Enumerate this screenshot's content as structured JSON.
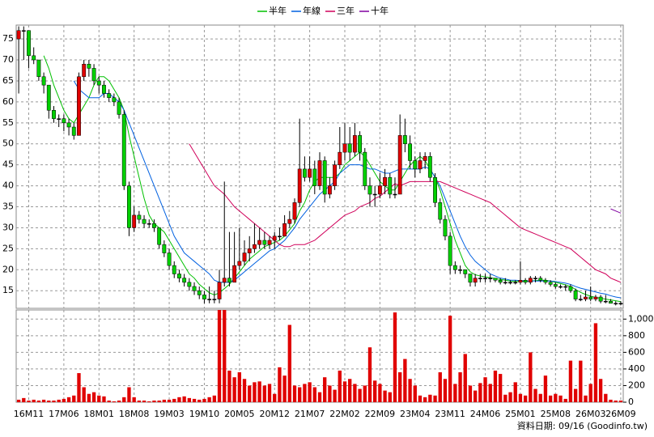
{
  "chart_data": {
    "type": "candlestick",
    "legend": "top",
    "grid": true,
    "up_color": "#e00000",
    "down_color": "#00d000",
    "flat_color": "#000000",
    "note": "資料日期: 09/16 (Goodinfo.tw)",
    "categories": [
      null,
      null,
      "16M11",
      null,
      null,
      null,
      null,
      null,
      null,
      "17M06",
      null,
      null,
      null,
      null,
      null,
      null,
      "18M01",
      null,
      null,
      null,
      null,
      null,
      null,
      "18M08",
      null,
      null,
      null,
      null,
      null,
      null,
      "19M03",
      null,
      null,
      null,
      null,
      null,
      null,
      "19M10",
      null,
      null,
      null,
      null,
      null,
      null,
      "20M05",
      null,
      null,
      null,
      null,
      null,
      null,
      "20M12",
      null,
      null,
      null,
      null,
      null,
      null,
      "21M07",
      null,
      null,
      null,
      null,
      null,
      null,
      "22M02",
      null,
      null,
      null,
      null,
      null,
      null,
      "22M09",
      null,
      null,
      null,
      null,
      null,
      null,
      "23M04",
      null,
      null,
      null,
      null,
      null,
      null,
      "23M11",
      null,
      null,
      null,
      null,
      null,
      null,
      "24M06",
      null,
      null,
      null,
      null,
      null,
      null,
      "25M01",
      null,
      null,
      null,
      null,
      null,
      null,
      "25M08",
      null,
      null,
      null,
      null,
      null,
      null,
      "26M03",
      null,
      null,
      null,
      null,
      null,
      "26M09"
    ],
    "ylim": [
      10.8,
      78.3
    ],
    "yticks": [
      15,
      20,
      25,
      30,
      35,
      40,
      45,
      50,
      55,
      60,
      65,
      70,
      75
    ],
    "ohlc": [
      [
        75,
        78,
        62,
        77
      ],
      [
        77,
        78,
        70,
        77
      ],
      [
        77,
        77,
        68,
        71
      ],
      [
        71,
        73,
        69,
        70
      ],
      [
        70,
        70,
        65,
        66
      ],
      [
        66,
        67,
        62,
        64
      ],
      [
        64,
        64,
        56,
        58
      ],
      [
        58,
        59,
        55,
        56
      ],
      [
        56,
        57,
        54,
        56
      ],
      [
        56,
        57,
        53,
        55
      ],
      [
        55,
        56,
        52,
        54
      ],
      [
        54,
        55,
        51,
        52
      ],
      [
        52,
        67,
        52,
        66
      ],
      [
        66,
        70,
        65,
        69
      ],
      [
        69,
        70,
        66,
        68
      ],
      [
        68,
        69,
        64,
        65
      ],
      [
        65,
        66,
        62,
        64
      ],
      [
        64,
        65,
        61,
        62
      ],
      [
        62,
        63,
        60,
        61
      ],
      [
        61,
        62,
        59,
        60
      ],
      [
        60,
        61,
        56,
        57
      ],
      [
        57,
        58,
        39,
        40
      ],
      [
        40,
        41,
        28,
        30
      ],
      [
        30,
        35,
        29,
        33
      ],
      [
        33,
        34,
        31,
        32
      ],
      [
        32,
        33,
        30,
        31
      ],
      [
        31,
        32,
        30,
        31
      ],
      [
        31,
        32,
        29,
        30
      ],
      [
        30,
        30,
        25,
        26
      ],
      [
        26,
        27,
        23,
        24
      ],
      [
        24,
        25,
        20,
        21
      ],
      [
        21,
        22,
        18,
        19
      ],
      [
        19,
        20,
        17,
        18
      ],
      [
        18,
        19,
        16,
        17
      ],
      [
        17,
        18,
        15,
        16
      ],
      [
        16,
        17,
        14,
        15
      ],
      [
        15,
        16,
        13,
        14
      ],
      [
        14,
        15,
        12,
        13
      ],
      [
        13,
        16,
        12,
        13
      ],
      [
        13,
        15,
        12,
        13
      ],
      [
        13,
        20,
        12,
        17
      ],
      [
        17,
        41,
        16,
        18
      ],
      [
        18,
        29,
        16,
        17
      ],
      [
        17,
        29,
        17,
        21
      ],
      [
        21,
        30,
        20,
        22
      ],
      [
        22,
        27,
        21,
        24
      ],
      [
        24,
        28,
        22,
        25
      ],
      [
        25,
        31,
        24,
        26
      ],
      [
        26,
        30,
        25,
        27
      ],
      [
        27,
        29,
        25,
        26
      ],
      [
        26,
        28,
        25,
        27
      ],
      [
        27,
        29,
        25,
        28
      ],
      [
        28,
        30,
        27,
        28
      ],
      [
        28,
        33,
        28,
        31
      ],
      [
        31,
        34,
        30,
        32
      ],
      [
        32,
        37,
        31,
        36
      ],
      [
        36,
        56,
        35,
        44
      ],
      [
        44,
        47,
        41,
        42
      ],
      [
        42,
        47,
        41,
        44
      ],
      [
        44,
        46,
        38,
        40
      ],
      [
        40,
        48,
        39,
        46
      ],
      [
        46,
        47,
        36,
        38
      ],
      [
        38,
        42,
        37,
        40
      ],
      [
        40,
        46,
        39,
        45
      ],
      [
        45,
        54,
        44,
        48
      ],
      [
        48,
        55,
        46,
        50
      ],
      [
        50,
        54,
        46,
        48
      ],
      [
        48,
        55,
        47,
        52
      ],
      [
        52,
        53,
        46,
        48
      ],
      [
        48,
        49,
        39,
        40
      ],
      [
        40,
        42,
        35,
        38
      ],
      [
        38,
        40,
        35,
        38
      ],
      [
        38,
        43,
        37,
        40
      ],
      [
        40,
        44,
        38,
        42
      ],
      [
        42,
        43,
        37,
        38
      ],
      [
        38,
        42,
        37,
        38
      ],
      [
        38,
        57,
        38,
        52
      ],
      [
        52,
        56,
        48,
        50
      ],
      [
        50,
        52,
        44,
        46
      ],
      [
        46,
        47,
        42,
        44
      ],
      [
        44,
        48,
        43,
        46
      ],
      [
        46,
        48,
        44,
        47
      ],
      [
        47,
        48,
        41,
        42
      ],
      [
        42,
        43,
        35,
        36
      ],
      [
        36,
        37,
        31,
        32
      ],
      [
        32,
        33,
        27,
        28
      ],
      [
        28,
        29,
        19,
        21
      ],
      [
        21,
        22,
        19,
        20
      ],
      [
        20,
        21,
        19,
        20
      ],
      [
        20,
        20,
        18,
        19
      ],
      [
        19,
        19,
        16,
        17
      ],
      [
        17,
        19,
        16,
        18
      ],
      [
        18,
        19,
        17,
        18
      ],
      [
        18,
        19,
        17,
        18
      ],
      [
        18,
        19,
        17,
        18
      ],
      [
        18,
        18,
        17,
        17.5
      ],
      [
        17.5,
        18,
        16.5,
        17
      ],
      [
        17,
        18,
        16.5,
        17
      ],
      [
        17,
        17.5,
        16.5,
        17
      ],
      [
        17,
        17.5,
        16.5,
        17
      ],
      [
        17,
        22,
        16.5,
        17.5
      ],
      [
        17.5,
        18,
        16.5,
        17
      ],
      [
        17,
        18.5,
        16.5,
        18
      ],
      [
        18,
        18.5,
        17,
        18
      ],
      [
        18,
        18.5,
        17,
        17.5
      ],
      [
        17.5,
        18,
        16.5,
        17
      ],
      [
        17,
        17.5,
        16,
        16.5
      ],
      [
        16.5,
        17,
        15.5,
        16
      ],
      [
        16,
        16.5,
        15.5,
        16
      ],
      [
        16,
        16.5,
        15,
        16
      ],
      [
        16,
        16.5,
        14.5,
        15
      ],
      [
        15,
        15.5,
        12.5,
        13
      ],
      [
        13,
        14,
        12.5,
        13
      ],
      [
        13,
        15,
        12.5,
        13.5
      ],
      [
        13.5,
        16,
        12.5,
        13
      ],
      [
        13,
        14,
        12.5,
        13.5
      ],
      [
        13.5,
        14,
        12,
        12.5
      ],
      [
        12.5,
        14,
        12,
        12.5
      ],
      [
        12.5,
        13,
        12,
        12
      ],
      [
        12,
        12.5,
        11.5,
        12
      ],
      [
        12,
        12.5,
        11.5,
        12
      ]
    ],
    "series": [
      {
        "name": "半年",
        "color": "#00c000",
        "values": [
          null,
          null,
          null,
          null,
          null,
          71,
          68,
          64,
          61,
          58,
          56,
          55,
          57,
          59,
          61,
          64,
          66,
          66,
          65,
          63,
          61,
          58,
          52,
          47,
          42,
          37,
          33,
          31,
          30,
          29,
          27,
          25,
          23,
          21,
          19,
          18,
          16.5,
          15.5,
          14.5,
          14,
          14.5,
          15.5,
          16.5,
          18,
          19.5,
          21,
          22.5,
          23.5,
          24.5,
          25.5,
          26,
          26.5,
          27,
          28,
          29.5,
          31,
          34,
          36,
          39,
          41,
          42,
          42,
          42,
          42,
          43,
          45,
          46,
          47,
          48,
          47,
          45,
          43,
          41,
          40,
          39,
          39,
          41,
          43,
          45,
          46,
          47,
          46,
          44,
          42,
          39,
          35,
          31,
          27,
          24,
          21,
          19.5,
          18.8,
          18.5,
          18.3,
          18.1,
          17.9,
          17.7,
          17.5,
          17.3,
          17.2,
          17.2,
          17.2,
          17.3,
          17.4,
          17.5,
          17.5,
          17.3,
          17,
          16.7,
          16.4,
          16,
          15.3,
          14.6,
          14.1,
          13.7,
          13.4,
          13.2,
          13,
          12.8,
          12.6,
          12.4
        ]
      },
      {
        "name": "年線",
        "color": "#0060e0",
        "values": [
          null,
          null,
          null,
          null,
          null,
          null,
          null,
          null,
          null,
          null,
          null,
          65,
          63,
          62,
          61,
          61,
          61,
          62,
          62,
          61,
          60,
          58,
          55,
          52,
          49,
          46,
          43,
          40,
          37,
          34,
          31,
          28,
          26,
          24,
          23,
          22,
          21,
          20,
          19,
          17.5,
          17,
          17,
          17,
          17.5,
          18.5,
          19.5,
          20.5,
          21.5,
          22.5,
          23.5,
          24.5,
          25,
          26,
          27,
          28.5,
          30,
          32,
          33.5,
          35,
          36.5,
          38,
          39,
          40,
          41,
          43,
          44,
          45,
          45,
          45,
          44.5,
          44,
          44,
          43.5,
          43,
          43,
          43.5,
          44,
          44,
          44,
          44,
          44,
          44.5,
          44,
          42,
          40,
          37,
          34,
          31,
          28,
          25.5,
          23.5,
          22,
          21,
          20,
          19,
          18.5,
          18,
          17.8,
          17.5,
          17.5,
          17.4,
          17.3,
          17.3,
          17.3,
          17.3,
          17.3,
          17.3,
          17.2,
          17,
          16.8,
          16.5,
          16,
          15.6,
          15.3,
          15,
          14.7,
          14.4,
          14.2,
          13.8,
          13.5,
          13.3
        ]
      },
      {
        "name": "三年",
        "color": "#d0005a",
        "values": [
          null,
          null,
          null,
          null,
          null,
          null,
          null,
          null,
          null,
          null,
          null,
          null,
          null,
          null,
          null,
          null,
          null,
          null,
          null,
          null,
          null,
          null,
          null,
          null,
          null,
          null,
          null,
          null,
          null,
          null,
          null,
          null,
          null,
          null,
          50,
          48,
          46,
          44,
          42,
          40,
          39,
          38,
          36.5,
          35,
          34,
          33,
          32,
          31,
          30,
          29,
          28,
          27,
          26,
          25.5,
          25.5,
          26,
          26,
          26,
          26.5,
          27,
          28,
          29,
          30,
          31,
          32,
          33,
          33.5,
          34,
          35,
          35.5,
          36,
          37,
          37.5,
          38.5,
          39.5,
          40.5,
          40,
          40.5,
          41,
          41,
          41,
          41,
          41,
          41,
          41,
          40.5,
          40,
          39.5,
          39,
          38.5,
          38,
          37.5,
          37,
          36.5,
          36,
          35,
          34,
          33,
          32,
          31,
          30,
          29.5,
          29,
          28.5,
          28,
          27.5,
          27,
          26.5,
          26,
          25.5,
          25,
          24,
          23,
          22,
          21,
          20,
          19.5,
          19,
          18,
          17.5,
          17
        ]
      },
      {
        "name": "十年",
        "color": "#8000a0",
        "values": [
          null,
          null,
          null,
          null,
          null,
          null,
          null,
          null,
          null,
          null,
          null,
          null,
          null,
          null,
          null,
          null,
          null,
          null,
          null,
          null,
          null,
          null,
          null,
          null,
          null,
          null,
          null,
          null,
          null,
          null,
          null,
          null,
          null,
          null,
          null,
          null,
          null,
          null,
          null,
          null,
          null,
          null,
          null,
          null,
          null,
          null,
          null,
          null,
          null,
          null,
          null,
          null,
          null,
          null,
          null,
          null,
          null,
          null,
          null,
          null,
          null,
          null,
          null,
          null,
          null,
          null,
          null,
          null,
          null,
          null,
          null,
          null,
          null,
          null,
          null,
          null,
          null,
          null,
          null,
          null,
          null,
          null,
          null,
          null,
          null,
          null,
          null,
          null,
          null,
          null,
          null,
          null,
          null,
          null,
          null,
          null,
          null,
          null,
          null,
          null,
          null,
          null,
          null,
          null,
          null,
          null,
          null,
          null,
          null,
          null,
          null,
          null,
          null,
          null,
          null,
          null,
          null,
          null,
          34.5,
          34,
          33.5
        ]
      }
    ],
    "volume": {
      "color": "#e00000",
      "ylim": [
        0,
        1110
      ],
      "yticks": [
        0,
        200,
        400,
        600,
        800,
        {
          "value": 1000,
          "label": "1,000"
        }
      ],
      "values": [
        30,
        50,
        20,
        30,
        20,
        30,
        20,
        20,
        30,
        40,
        60,
        80,
        350,
        180,
        100,
        120,
        80,
        70,
        20,
        10,
        20,
        60,
        180,
        60,
        20,
        20,
        10,
        20,
        20,
        30,
        30,
        40,
        60,
        70,
        50,
        40,
        30,
        40,
        60,
        80,
        1110,
        1110,
        380,
        300,
        360,
        280,
        200,
        240,
        250,
        200,
        220,
        100,
        420,
        320,
        930,
        200,
        180,
        220,
        240,
        180,
        120,
        300,
        200,
        150,
        380,
        250,
        280,
        220,
        160,
        200,
        660,
        260,
        220,
        140,
        120,
        1080,
        360,
        520,
        280,
        200,
        80,
        60,
        90,
        80,
        360,
        280,
        1040,
        220,
        360,
        580,
        200,
        140,
        230,
        300,
        220,
        380,
        340,
        90,
        120,
        240,
        100,
        80,
        600,
        160,
        100,
        320,
        80,
        100,
        80,
        40,
        500,
        160,
        500,
        80,
        220,
        950,
        280,
        100,
        30,
        20,
        20
      ]
    }
  }
}
